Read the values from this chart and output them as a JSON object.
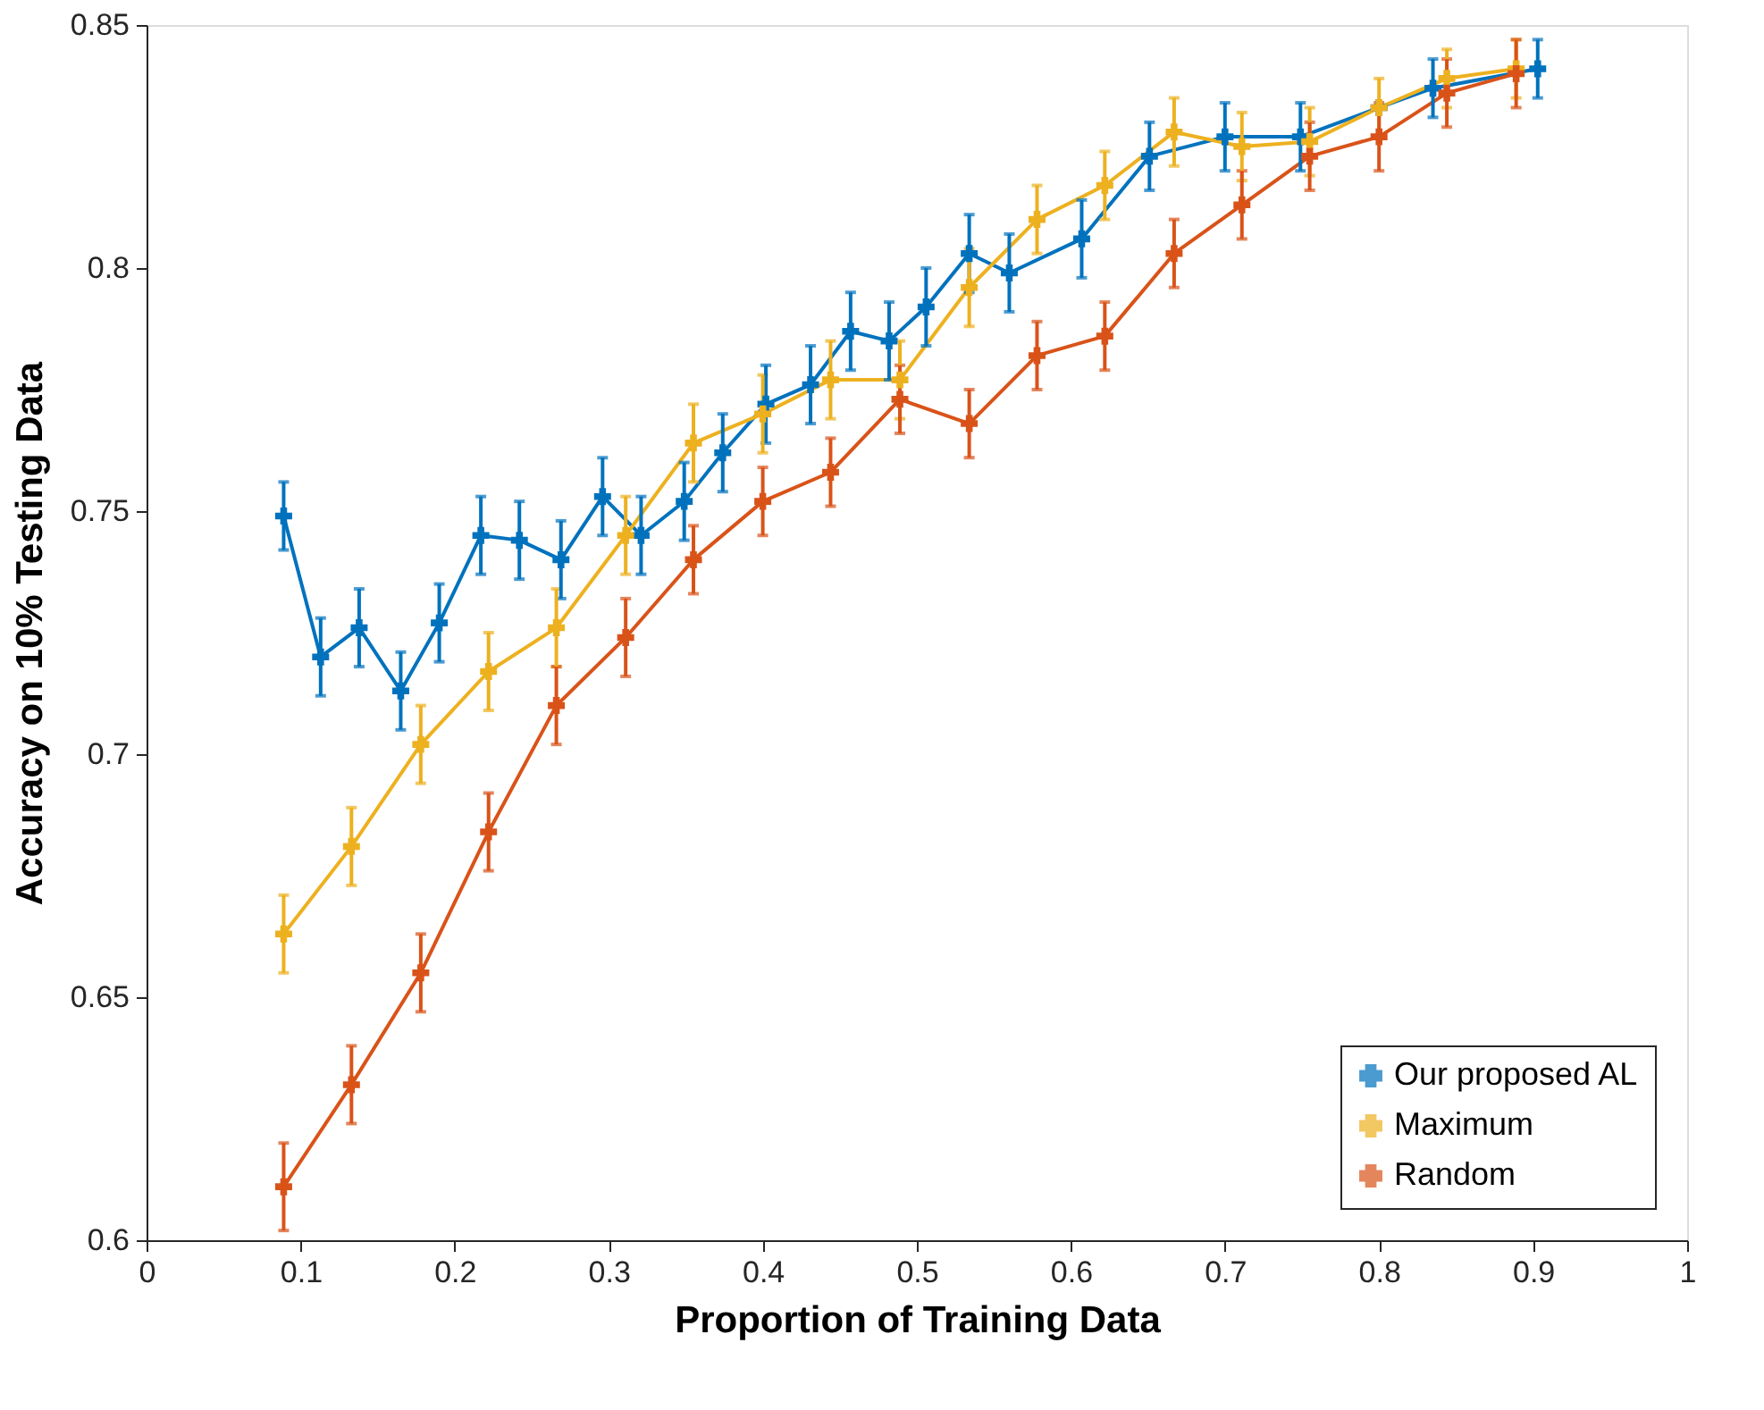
{
  "chart_data": {
    "type": "line",
    "xlabel": "Proportion of Training Data",
    "ylabel": "Accuracy on 10% Testing Data",
    "xlim": [
      0,
      1
    ],
    "ylim": [
      0.6,
      0.85
    ],
    "xticks": [
      0,
      0.1,
      0.2,
      0.3,
      0.4,
      0.5,
      0.6,
      0.7,
      0.8,
      0.9,
      1
    ],
    "yticks": [
      0.6,
      0.65,
      0.7,
      0.75,
      0.8,
      0.85
    ],
    "grid": false,
    "legend": "bottom right",
    "marker": "cross",
    "line_style": "solid",
    "series": [
      {
        "name": "Our proposed AL",
        "color": "#0072bd",
        "x": [
          0.089,
          0.113,
          0.138,
          0.165,
          0.19,
          0.217,
          0.242,
          0.269,
          0.296,
          0.321,
          0.349,
          0.374,
          0.402,
          0.431,
          0.457,
          0.482,
          0.506,
          0.534,
          0.56,
          0.607,
          0.651,
          0.7,
          0.749,
          0.8,
          0.835,
          0.903
        ],
        "values": [
          0.749,
          0.72,
          0.726,
          0.713,
          0.727,
          0.745,
          0.744,
          0.74,
          0.753,
          0.745,
          0.752,
          0.762,
          0.772,
          0.776,
          0.787,
          0.785,
          0.792,
          0.803,
          0.799,
          0.806,
          0.823,
          0.827,
          0.827,
          0.833,
          0.837,
          0.841
        ],
        "errors": [
          0.007,
          0.008,
          0.008,
          0.008,
          0.008,
          0.008,
          0.008,
          0.008,
          0.008,
          0.008,
          0.008,
          0.008,
          0.008,
          0.008,
          0.008,
          0.008,
          0.008,
          0.008,
          0.008,
          0.008,
          0.007,
          0.007,
          0.007,
          null,
          0.006,
          0.006
        ]
      },
      {
        "name": "Maximum",
        "color": "#edb120",
        "x": [
          0.089,
          0.133,
          0.178,
          0.222,
          0.266,
          0.311,
          0.355,
          0.4,
          0.444,
          0.489,
          0.534,
          0.578,
          0.622,
          0.667,
          0.711,
          0.755,
          0.8,
          0.844,
          0.889
        ],
        "values": [
          0.663,
          0.681,
          0.702,
          0.717,
          0.726,
          0.745,
          0.764,
          0.77,
          0.777,
          0.777,
          0.796,
          0.81,
          0.817,
          0.828,
          0.825,
          0.826,
          0.833,
          0.839,
          0.841
        ],
        "errors": [
          0.008,
          0.008,
          0.008,
          0.008,
          0.008,
          0.008,
          0.008,
          0.008,
          0.008,
          0.008,
          0.008,
          0.007,
          0.007,
          0.007,
          0.007,
          0.007,
          0.006,
          0.006,
          0.006
        ]
      },
      {
        "name": "Random",
        "color": "#d95319",
        "x": [
          0.089,
          0.133,
          0.178,
          0.222,
          0.266,
          0.311,
          0.355,
          0.4,
          0.444,
          0.489,
          0.534,
          0.578,
          0.622,
          0.667,
          0.711,
          0.755,
          0.8,
          0.844,
          0.889
        ],
        "values": [
          0.611,
          0.632,
          0.655,
          0.684,
          0.71,
          0.724,
          0.74,
          0.752,
          0.758,
          0.773,
          0.768,
          0.782,
          0.786,
          0.803,
          0.813,
          0.823,
          0.827,
          0.836,
          0.84
        ],
        "errors": [
          0.009,
          0.008,
          0.008,
          0.008,
          0.008,
          0.008,
          0.007,
          0.007,
          0.007,
          0.007,
          0.007,
          0.007,
          0.007,
          0.007,
          0.007,
          0.007,
          0.007,
          0.007,
          0.007
        ]
      }
    ]
  }
}
